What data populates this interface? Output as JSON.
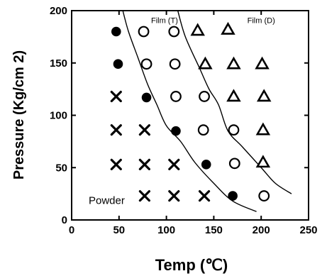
{
  "chart_data": {
    "type": "scatter",
    "title": "",
    "xlabel": "Temp (℃)",
    "ylabel": "Pressure (Kg/cm  2)",
    "xlim": [
      0,
      250
    ],
    "ylim": [
      0,
      200
    ],
    "xticks": [
      0,
      50,
      100,
      150,
      200,
      250
    ],
    "yticks": [
      0,
      50,
      100,
      150,
      200
    ],
    "grid": false,
    "legend": "none",
    "annotations": [
      {
        "text": "Film (T)",
        "x": 98,
        "y": 191
      },
      {
        "text": "Film (D)",
        "x": 200,
        "y": 191
      },
      {
        "text": "Powder",
        "x": 37,
        "y": 18
      }
    ],
    "series": [
      {
        "marker": "cross",
        "points": [
          [
            47,
            118
          ],
          [
            47,
            86
          ],
          [
            47,
            53
          ],
          [
            77,
            86
          ],
          [
            77,
            53
          ],
          [
            77,
            23
          ],
          [
            108,
            53
          ],
          [
            108,
            23
          ],
          [
            140,
            23
          ]
        ]
      },
      {
        "marker": "filled-circle",
        "points": [
          [
            47,
            180
          ],
          [
            49,
            149
          ],
          [
            79,
            117
          ],
          [
            110,
            85
          ],
          [
            142,
            53
          ],
          [
            170,
            23
          ]
        ]
      },
      {
        "marker": "open-circle",
        "points": [
          [
            76,
            180
          ],
          [
            108,
            180
          ],
          [
            79,
            149
          ],
          [
            109,
            149
          ],
          [
            110,
            118
          ],
          [
            140,
            118
          ],
          [
            139,
            86
          ],
          [
            171,
            86
          ],
          [
            172,
            54
          ],
          [
            203,
            23
          ]
        ]
      },
      {
        "marker": "open-triangle",
        "points": [
          [
            133,
            181
          ],
          [
            165,
            182
          ],
          [
            141,
            149
          ],
          [
            171,
            149
          ],
          [
            201,
            149
          ],
          [
            171,
            118
          ],
          [
            203,
            118
          ],
          [
            202,
            86
          ],
          [
            202,
            55
          ]
        ]
      }
    ],
    "curves": [
      {
        "name": "Film (T) boundary",
        "points": [
          [
            54,
            200
          ],
          [
            60,
            180
          ],
          [
            70,
            155
          ],
          [
            80,
            130
          ],
          [
            90,
            110
          ],
          [
            100,
            90
          ],
          [
            115,
            75
          ],
          [
            130,
            55
          ],
          [
            150,
            35
          ],
          [
            170,
            18
          ],
          [
            195,
            8
          ]
        ]
      },
      {
        "name": "Film (D) boundary",
        "points": [
          [
            112,
            200
          ],
          [
            120,
            175
          ],
          [
            135,
            145
          ],
          [
            145,
            125
          ],
          [
            155,
            110
          ],
          [
            165,
            85
          ],
          [
            180,
            70
          ],
          [
            200,
            50
          ],
          [
            215,
            35
          ],
          [
            232,
            25
          ]
        ]
      }
    ]
  }
}
